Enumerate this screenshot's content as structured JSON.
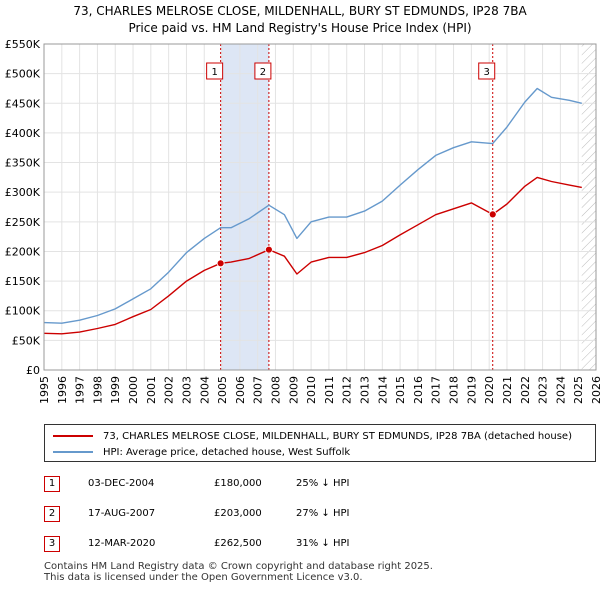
{
  "header": {
    "title": "73, CHARLES MELROSE CLOSE, MILDENHALL, BURY ST EDMUNDS, IP28 7BA",
    "subtitle": "Price paid vs. HM Land Registry's House Price Index (HPI)"
  },
  "colors": {
    "price_line": "#cc0000",
    "hpi_line": "#6699cc",
    "shade": "#dde6f5",
    "hatch": "#bbbbbb",
    "marker_border": "#cc0000"
  },
  "chart_data": {
    "type": "line",
    "title": "Price paid vs. HM Land Registry's House Price Index (HPI)",
    "xlim": [
      1995,
      2026
    ],
    "ylim": [
      0,
      550000
    ],
    "y_ticks": [
      0,
      50000,
      100000,
      150000,
      200000,
      250000,
      300000,
      350000,
      400000,
      450000,
      500000,
      550000
    ],
    "y_tick_labels": [
      "£0",
      "£50K",
      "£100K",
      "£150K",
      "£200K",
      "£250K",
      "£300K",
      "£350K",
      "£400K",
      "£450K",
      "£500K",
      "£550K"
    ],
    "x_ticks": [
      1995,
      1996,
      1997,
      1998,
      1999,
      2000,
      2001,
      2002,
      2003,
      2004,
      2005,
      2006,
      2007,
      2008,
      2009,
      2010,
      2011,
      2012,
      2013,
      2014,
      2015,
      2016,
      2017,
      2018,
      2019,
      2020,
      2021,
      2022,
      2023,
      2024,
      2025,
      2026
    ],
    "x_tick_labels": [
      "1995",
      "1996",
      "1997",
      "1998",
      "1999",
      "2000",
      "2001",
      "2002",
      "2003",
      "2004",
      "2005",
      "2006",
      "2007",
      "2008",
      "2009",
      "2010",
      "2011",
      "2012",
      "2013",
      "2014",
      "2015",
      "2016",
      "2017",
      "2018",
      "2019",
      "2020",
      "2021",
      "2022",
      "2023",
      "2024",
      "2025",
      "2026"
    ],
    "grid": true,
    "shaded_ranges": [
      [
        2004.92,
        2007.63
      ]
    ],
    "forecast_from": 2025.2,
    "event_lines": [
      2004.92,
      2007.63,
      2020.2
    ],
    "series": [
      {
        "name": "73, CHARLES MELROSE CLOSE, MILDENHALL, BURY ST EDMUNDS, IP28 7BA (detached house)",
        "color": "#cc0000",
        "points": [
          [
            1995.0,
            62000
          ],
          [
            1996.0,
            61000
          ],
          [
            1997.0,
            64000
          ],
          [
            1998.0,
            70000
          ],
          [
            1999.0,
            77000
          ],
          [
            2000.0,
            90000
          ],
          [
            2001.0,
            102000
          ],
          [
            2002.0,
            125000
          ],
          [
            2003.0,
            150000
          ],
          [
            2004.0,
            168000
          ],
          [
            2004.92,
            180000
          ],
          [
            2005.5,
            182000
          ],
          [
            2006.5,
            188000
          ],
          [
            2007.63,
            203000
          ],
          [
            2008.5,
            192000
          ],
          [
            2009.2,
            162000
          ],
          [
            2010.0,
            182000
          ],
          [
            2011.0,
            190000
          ],
          [
            2012.0,
            190000
          ],
          [
            2013.0,
            198000
          ],
          [
            2014.0,
            210000
          ],
          [
            2015.0,
            228000
          ],
          [
            2016.0,
            245000
          ],
          [
            2017.0,
            262000
          ],
          [
            2018.0,
            272000
          ],
          [
            2019.0,
            282000
          ],
          [
            2020.2,
            262500
          ],
          [
            2021.0,
            280000
          ],
          [
            2022.0,
            310000
          ],
          [
            2022.7,
            325000
          ],
          [
            2023.5,
            318000
          ],
          [
            2024.5,
            312000
          ],
          [
            2025.2,
            308000
          ]
        ]
      },
      {
        "name": "HPI: Average price, detached house, West Suffolk",
        "color": "#6699cc",
        "points": [
          [
            1995.0,
            80000
          ],
          [
            1996.0,
            79000
          ],
          [
            1997.0,
            84000
          ],
          [
            1998.0,
            92000
          ],
          [
            1999.0,
            103000
          ],
          [
            2000.0,
            120000
          ],
          [
            2001.0,
            137000
          ],
          [
            2002.0,
            165000
          ],
          [
            2003.0,
            198000
          ],
          [
            2004.0,
            222000
          ],
          [
            2004.92,
            240000
          ],
          [
            2005.5,
            240000
          ],
          [
            2006.5,
            255000
          ],
          [
            2007.63,
            278000
          ],
          [
            2008.5,
            262000
          ],
          [
            2009.2,
            222000
          ],
          [
            2010.0,
            250000
          ],
          [
            2011.0,
            258000
          ],
          [
            2012.0,
            258000
          ],
          [
            2013.0,
            268000
          ],
          [
            2014.0,
            285000
          ],
          [
            2015.0,
            312000
          ],
          [
            2016.0,
            338000
          ],
          [
            2017.0,
            362000
          ],
          [
            2018.0,
            375000
          ],
          [
            2019.0,
            385000
          ],
          [
            2020.2,
            382000
          ],
          [
            2021.0,
            410000
          ],
          [
            2022.0,
            452000
          ],
          [
            2022.7,
            475000
          ],
          [
            2023.5,
            460000
          ],
          [
            2024.5,
            455000
          ],
          [
            2025.2,
            450000
          ]
        ]
      }
    ],
    "markers": [
      {
        "label": "1",
        "x": 2004.92,
        "y": 180000
      },
      {
        "label": "2",
        "x": 2007.63,
        "y": 203000
      },
      {
        "label": "3",
        "x": 2020.2,
        "y": 262500
      }
    ]
  },
  "legend": {
    "items": [
      {
        "label": "73, CHARLES MELROSE CLOSE, MILDENHALL, BURY ST EDMUNDS, IP28 7BA (detached house)"
      },
      {
        "label": "HPI: Average price, detached house, West Suffolk"
      }
    ]
  },
  "transactions": [
    {
      "num": "1",
      "date": "03-DEC-2004",
      "price": "£180,000",
      "hpi": "25% ↓ HPI"
    },
    {
      "num": "2",
      "date": "17-AUG-2007",
      "price": "£203,000",
      "hpi": "27% ↓ HPI"
    },
    {
      "num": "3",
      "date": "12-MAR-2020",
      "price": "£262,500",
      "hpi": "31% ↓ HPI"
    }
  ],
  "footer": {
    "line1": "Contains HM Land Registry data © Crown copyright and database right 2025.",
    "line2": "This data is licensed under the Open Government Licence v3.0."
  }
}
